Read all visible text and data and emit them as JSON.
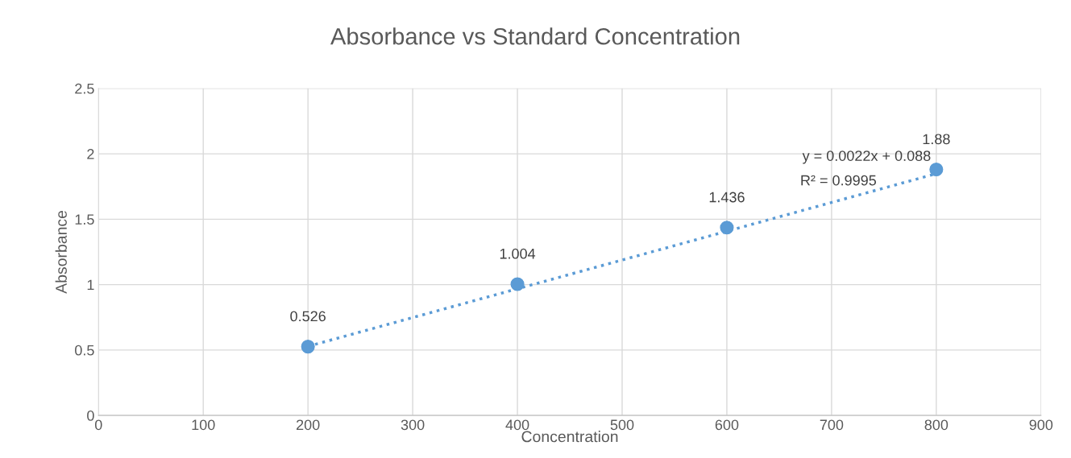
{
  "chart_data": {
    "type": "scatter",
    "title": "Absorbance vs Standard Concentration",
    "xlabel": "Concentration",
    "ylabel": "Absorbance",
    "series": [
      {
        "color": "#5b9bd5",
        "marker": "circle",
        "x": [
          200,
          400,
          600,
          800
        ],
        "values": [
          0.526,
          1.004,
          1.436,
          1.88
        ],
        "value_labels": [
          "0.526",
          "1.004",
          "1.436",
          "1.88"
        ]
      },
      {
        "type": "line",
        "color": "#5b9bd5",
        "line_style": "dotted",
        "marker": "none",
        "x": [
          200,
          800
        ],
        "values": [
          0.528,
          1.848
        ]
      }
    ],
    "annotations": [
      "y = 0.0022x + 0.088",
      "R² = 0.9995"
    ],
    "xlim": [
      0,
      900
    ],
    "xticks": [
      0,
      100,
      200,
      300,
      400,
      500,
      600,
      700,
      800,
      900
    ],
    "ylim": [
      0,
      2.5
    ],
    "yticks": [
      0,
      0.5,
      1,
      1.5,
      2,
      2.5
    ],
    "grid": true,
    "legend": false
  }
}
